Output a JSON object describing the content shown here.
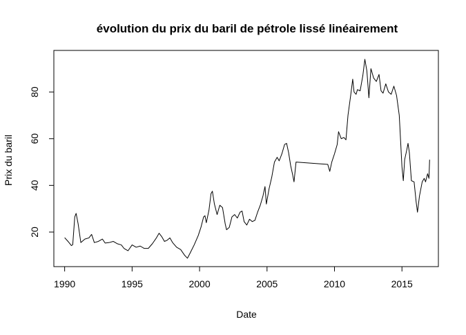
{
  "chart_data": {
    "type": "line",
    "title": "évolution du prix du baril de pétrole lissé linéairement",
    "xlabel": "Date",
    "ylabel": "Prix du baril",
    "xlim": [
      1989.2,
      2017.7
    ],
    "ylim": [
      5.2,
      97.8
    ],
    "x_ticks": [
      1990,
      1995,
      2000,
      2005,
      2010,
      2015
    ],
    "y_ticks": [
      20,
      40,
      60,
      80
    ],
    "grid": false,
    "series": [
      {
        "points": [
          [
            1990.0,
            17.6
          ],
          [
            1990.25,
            16.0
          ],
          [
            1990.5,
            14.2
          ],
          [
            1990.6,
            14.6
          ],
          [
            1990.75,
            26.5
          ],
          [
            1990.85,
            28.0
          ],
          [
            1991.0,
            23.5
          ],
          [
            1991.2,
            15.5
          ],
          [
            1991.5,
            17.0
          ],
          [
            1991.8,
            17.5
          ],
          [
            1992.0,
            19.0
          ],
          [
            1992.2,
            15.5
          ],
          [
            1992.5,
            16.0
          ],
          [
            1992.8,
            17.0
          ],
          [
            1993.0,
            15.3
          ],
          [
            1993.3,
            15.5
          ],
          [
            1993.6,
            16.0
          ],
          [
            1993.9,
            15.0
          ],
          [
            1994.2,
            14.5
          ],
          [
            1994.4,
            13.0
          ],
          [
            1994.7,
            12.0
          ],
          [
            1995.0,
            14.5
          ],
          [
            1995.3,
            13.5
          ],
          [
            1995.6,
            14.0
          ],
          [
            1995.9,
            13.0
          ],
          [
            1996.2,
            13.0
          ],
          [
            1996.5,
            15.0
          ],
          [
            1996.8,
            17.5
          ],
          [
            1997.0,
            19.5
          ],
          [
            1997.2,
            18.0
          ],
          [
            1997.4,
            16.0
          ],
          [
            1997.6,
            16.5
          ],
          [
            1997.8,
            17.5
          ],
          [
            1998.0,
            15.5
          ],
          [
            1998.3,
            13.5
          ],
          [
            1998.6,
            12.5
          ],
          [
            1998.9,
            10.0
          ],
          [
            1999.1,
            8.8
          ],
          [
            1999.3,
            11.0
          ],
          [
            1999.6,
            14.5
          ],
          [
            1999.9,
            18.5
          ],
          [
            2000.1,
            22.0
          ],
          [
            2000.3,
            26.5
          ],
          [
            2000.4,
            27.0
          ],
          [
            2000.5,
            24.0
          ],
          [
            2000.7,
            29.5
          ],
          [
            2000.85,
            36.5
          ],
          [
            2000.95,
            37.5
          ],
          [
            2001.1,
            32.0
          ],
          [
            2001.3,
            27.5
          ],
          [
            2001.5,
            31.5
          ],
          [
            2001.7,
            30.5
          ],
          [
            2001.9,
            23.5
          ],
          [
            2002.0,
            21.0
          ],
          [
            2002.2,
            22.0
          ],
          [
            2002.4,
            26.5
          ],
          [
            2002.6,
            27.5
          ],
          [
            2002.8,
            26.0
          ],
          [
            2003.0,
            28.5
          ],
          [
            2003.15,
            29.0
          ],
          [
            2003.3,
            24.5
          ],
          [
            2003.5,
            23.0
          ],
          [
            2003.7,
            25.5
          ],
          [
            2003.9,
            24.5
          ],
          [
            2004.1,
            25.0
          ],
          [
            2004.3,
            28.5
          ],
          [
            2004.5,
            31.5
          ],
          [
            2004.7,
            35.5
          ],
          [
            2004.85,
            39.5
          ],
          [
            2004.95,
            32.0
          ],
          [
            2005.15,
            38.5
          ],
          [
            2005.35,
            43.5
          ],
          [
            2005.55,
            50.0
          ],
          [
            2005.75,
            52.0
          ],
          [
            2005.9,
            50.5
          ],
          [
            2006.1,
            53.5
          ],
          [
            2006.3,
            57.5
          ],
          [
            2006.45,
            58.0
          ],
          [
            2006.6,
            54.0
          ],
          [
            2006.75,
            48.5
          ],
          [
            2006.9,
            44.5
          ],
          [
            2007.0,
            41.5
          ],
          [
            2007.15,
            50.0
          ],
          [
            2009.5,
            49.0
          ],
          [
            2009.65,
            46.0
          ],
          [
            2009.8,
            50.0
          ],
          [
            2010.0,
            53.5
          ],
          [
            2010.2,
            57.5
          ],
          [
            2010.3,
            63.0
          ],
          [
            2010.5,
            60.0
          ],
          [
            2010.7,
            60.5
          ],
          [
            2010.85,
            59.5
          ],
          [
            2011.0,
            70.0
          ],
          [
            2011.2,
            78.5
          ],
          [
            2011.35,
            85.5
          ],
          [
            2011.45,
            80.0
          ],
          [
            2011.6,
            79.0
          ],
          [
            2011.7,
            81.0
          ],
          [
            2011.9,
            80.5
          ],
          [
            2012.1,
            87.0
          ],
          [
            2012.25,
            94.0
          ],
          [
            2012.4,
            89.0
          ],
          [
            2012.55,
            77.5
          ],
          [
            2012.7,
            90.0
          ],
          [
            2012.9,
            86.0
          ],
          [
            2013.1,
            84.5
          ],
          [
            2013.3,
            87.5
          ],
          [
            2013.45,
            80.5
          ],
          [
            2013.6,
            79.5
          ],
          [
            2013.8,
            83.5
          ],
          [
            2014.0,
            80.0
          ],
          [
            2014.2,
            79.0
          ],
          [
            2014.4,
            82.5
          ],
          [
            2014.6,
            78.5
          ],
          [
            2014.8,
            70.0
          ],
          [
            2015.0,
            48.0
          ],
          [
            2015.1,
            42.0
          ],
          [
            2015.2,
            51.0
          ],
          [
            2015.35,
            55.0
          ],
          [
            2015.45,
            58.0
          ],
          [
            2015.55,
            54.0
          ],
          [
            2015.7,
            42.0
          ],
          [
            2015.9,
            41.5
          ],
          [
            2016.05,
            33.0
          ],
          [
            2016.15,
            28.5
          ],
          [
            2016.3,
            35.5
          ],
          [
            2016.5,
            41.5
          ],
          [
            2016.65,
            43.0
          ],
          [
            2016.75,
            41.5
          ],
          [
            2016.9,
            45.0
          ],
          [
            2017.0,
            43.0
          ],
          [
            2017.05,
            51.0
          ]
        ]
      }
    ]
  }
}
